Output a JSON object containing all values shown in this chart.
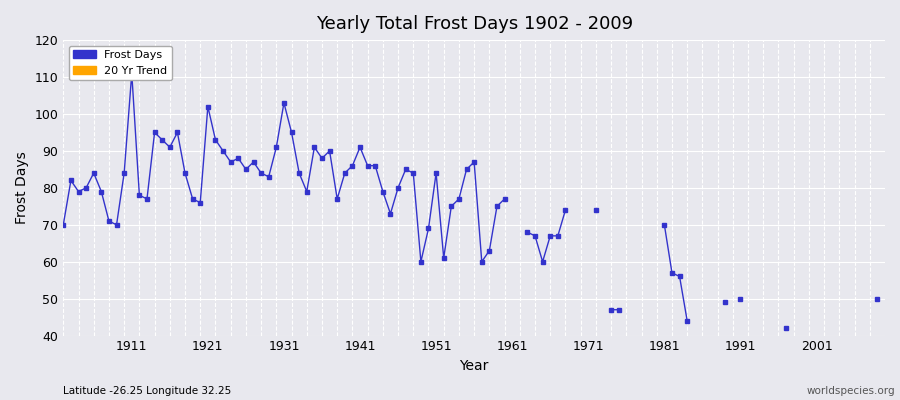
{
  "title": "Yearly Total Frost Days 1902 - 2009",
  "xlabel": "Year",
  "ylabel": "Frost Days",
  "footnote_left": "Latitude -26.25 Longitude 32.25",
  "footnote_right": "worldspecies.org",
  "ylim": [
    40,
    120
  ],
  "yticks": [
    40,
    50,
    60,
    70,
    80,
    90,
    100,
    110,
    120
  ],
  "line_color": "#3333cc",
  "trend_color": "#FFA500",
  "background_color": "#e8e8ee",
  "plot_bg_color": "#e8e8ee",
  "xticks": [
    1911,
    1921,
    1931,
    1941,
    1951,
    1961,
    1971,
    1981,
    1991,
    2001
  ],
  "years": [
    1902,
    1903,
    1904,
    1905,
    1906,
    1907,
    1908,
    1909,
    1910,
    1911,
    1912,
    1913,
    1914,
    1915,
    1916,
    1917,
    1918,
    1919,
    1920,
    1921,
    1922,
    1923,
    1924,
    1925,
    1926,
    1927,
    1928,
    1929,
    1930,
    1931,
    1932,
    1933,
    1934,
    1935,
    1936,
    1937,
    1938,
    1939,
    1940,
    1941,
    1942,
    1943,
    1944,
    1945,
    1946,
    1947,
    1948,
    1949,
    1950,
    1951,
    1952,
    1953,
    1954,
    1955,
    1956,
    1957,
    1958,
    1959,
    1960,
    1963,
    1964,
    1965,
    1966,
    1967,
    1968,
    1972,
    1974,
    1975,
    1981,
    1982,
    1983,
    1984,
    1989,
    1991,
    1997,
    2009
  ],
  "frost_days": [
    70,
    82,
    79,
    80,
    84,
    79,
    71,
    70,
    84,
    111,
    78,
    77,
    95,
    93,
    91,
    95,
    84,
    77,
    76,
    102,
    93,
    90,
    87,
    88,
    85,
    87,
    84,
    83,
    91,
    103,
    95,
    84,
    79,
    91,
    88,
    90,
    77,
    84,
    86,
    91,
    86,
    86,
    79,
    73,
    80,
    85,
    84,
    60,
    69,
    84,
    61,
    75,
    77,
    85,
    87,
    60,
    63,
    75,
    77,
    68,
    67,
    60,
    67,
    67,
    74,
    74,
    47,
    47,
    70,
    57,
    56,
    44,
    49,
    50,
    42,
    50
  ]
}
